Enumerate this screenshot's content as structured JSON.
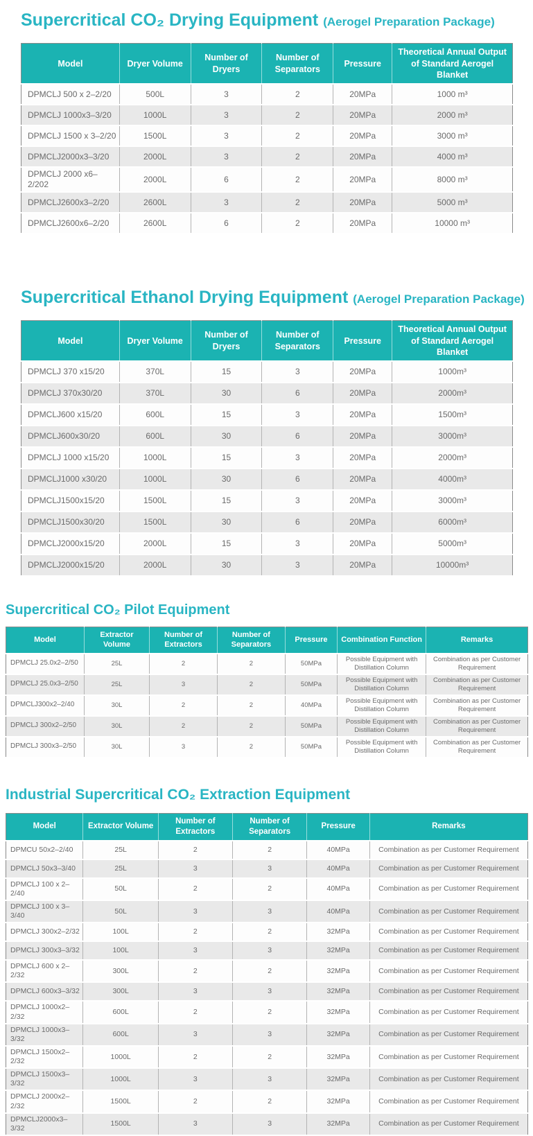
{
  "colors": {
    "accent": "#1bb3b2",
    "title": "#29b5c3",
    "row_alt": "#e9e9e9",
    "cell_text": "#6a6a6a"
  },
  "sections": [
    {
      "title": "Supercritical CO₂ Drying Equipment",
      "suffix": "(Aerogel Preparation Package)",
      "columns": [
        "Model",
        "Dryer Volume",
        "Number of Dryers",
        "Number of Separators",
        "Pressure",
        "Theoretical Annual Output of Standard Aerogel Blanket"
      ],
      "rows": [
        [
          "DPMCLJ 500 x 2–2/20",
          "500L",
          "3",
          "2",
          "20MPa",
          "1000 m³"
        ],
        [
          "DPMCLJ 1000x3–3/20",
          "1000L",
          "3",
          "2",
          "20MPa",
          "2000 m³"
        ],
        [
          "DPMCLJ 1500 x 3–2/20",
          "1500L",
          "3",
          "2",
          "20MPa",
          "3000 m³"
        ],
        [
          "DPMCLJ2000x3–3/20",
          "2000L",
          "3",
          "2",
          "20MPa",
          "4000 m³"
        ],
        [
          "DPMCLJ 2000 x6–2/202",
          "2000L",
          "6",
          "2",
          "20MPa",
          "8000 m³"
        ],
        [
          "DPMCLJ2600x3–2/20",
          "2600L",
          "3",
          "2",
          "20MPa",
          "5000 m³"
        ],
        [
          "DPMCLJ2600x6–2/20",
          "2600L",
          "6",
          "2",
          "20MPa",
          "10000 m³"
        ]
      ]
    },
    {
      "title": "Supercritical Ethanol Drying Equipment",
      "suffix": "(Aerogel Preparation Package)",
      "columns": [
        "Model",
        "Dryer Volume",
        "Number of Dryers",
        "Number of Separators",
        "Pressure",
        "Theoretical Annual Output of Standard Aerogel Blanket"
      ],
      "rows": [
        [
          "DPMCLJ 370 x15/20",
          "370L",
          "15",
          "3",
          "20MPa",
          "1000m³"
        ],
        [
          "DPMCLJ 370x30/20",
          "370L",
          "30",
          "6",
          "20MPa",
          "2000m³"
        ],
        [
          "DPMCLJ600 x15/20",
          "600L",
          "15",
          "3",
          "20MPa",
          "1500m³"
        ],
        [
          "DPMCLJ600x30/20",
          "600L",
          "30",
          "6",
          "20MPa",
          "3000m³"
        ],
        [
          "DPMCLJ 1000 x15/20",
          "1000L",
          "15",
          "3",
          "20MPa",
          "2000m³"
        ],
        [
          "DPMCLJ1000 x30/20",
          "1000L",
          "30",
          "6",
          "20MPa",
          "4000m³"
        ],
        [
          "DPMCLJ1500x15/20",
          "1500L",
          "15",
          "3",
          "20MPa",
          "3000m³"
        ],
        [
          "DPMCLJ1500x30/20",
          "1500L",
          "30",
          "6",
          "20MPa",
          "6000m³"
        ],
        [
          "DPMCLJ2000x15/20",
          "2000L",
          "15",
          "3",
          "20MPa",
          "5000m³"
        ],
        [
          "DPMCLJ2000x15/20",
          "2000L",
          "30",
          "3",
          "20MPa",
          "10000m³"
        ]
      ]
    },
    {
      "title": "Supercritical CO₂ Pilot Equipment",
      "suffix": "",
      "columns": [
        "Model",
        "Extractor Volume",
        "Number of Extractors",
        "Number of Separators",
        "Pressure",
        "Combination Function",
        "Remarks"
      ],
      "rows": [
        [
          "DPMCLJ 25.0x2–2/50",
          "25L",
          "2",
          "2",
          "50MPa",
          "Possible Equipment with Distillation Column",
          "Combination as per Customer Requirement"
        ],
        [
          "DPMCLJ 25.0x3–2/50",
          "25L",
          "3",
          "2",
          "50MPa",
          "Possible Equipment with Distillation Column",
          "Combination as per Customer Requirement"
        ],
        [
          "DPMCLJ300x2–2/40",
          "30L",
          "2",
          "2",
          "40MPa",
          "Possible Equipment with Distillation Column",
          "Combination as per Customer Requirement"
        ],
        [
          "DPMCLJ 300x2–2/50",
          "30L",
          "2",
          "2",
          "50MPa",
          "Possible Equipment with Distillation Column",
          "Combination as per Customer Requirement"
        ],
        [
          "DPMCLJ 300x3–2/50",
          "30L",
          "3",
          "2",
          "50MPa",
          "Possible Equipment with Distillation Column",
          "Combination as per Customer Requirement"
        ]
      ]
    },
    {
      "title": "Industrial Supercritical CO₂ Extraction Equipment",
      "suffix": "",
      "columns": [
        "Model",
        "Extractor Volume",
        "Number of Extractors",
        "Number of Separators",
        "Pressure",
        "Remarks"
      ],
      "rows": [
        [
          "DPMCU 50x2–2/40",
          "25L",
          "2",
          "2",
          "40MPa",
          "Combination as per Customer Requirement"
        ],
        [
          "DPMCLJ 50x3–3/40",
          "25L",
          "3",
          "3",
          "40MPa",
          "Combination as per Customer Requirement"
        ],
        [
          "DPMCLJ 100 x 2–2/40",
          "50L",
          "2",
          "2",
          "40MPa",
          "Combination as per Customer Requirement"
        ],
        [
          "DPMCLJ 100 x 3–3/40",
          "50L",
          "3",
          "3",
          "40MPa",
          "Combination as per Customer Requirement"
        ],
        [
          "DPMCLJ 300x2–2/32",
          "100L",
          "2",
          "2",
          "32MPa",
          "Combination as per Customer Requirement"
        ],
        [
          "DPMCLJ 300x3–3/32",
          "100L",
          "3",
          "3",
          "32MPa",
          "Combination as per Customer Requirement"
        ],
        [
          "DPMCLJ 600 x 2–2/32",
          "300L",
          "2",
          "2",
          "32MPa",
          "Combination as per Customer Requirement"
        ],
        [
          "DPMCLJ 600x3–3/32",
          "300L",
          "3",
          "3",
          "32MPa",
          "Combination as per Customer Requirement"
        ],
        [
          "DPMCLJ 1000x2–2/32",
          "600L",
          "2",
          "2",
          "32MPa",
          "Combination as per Customer Requirement"
        ],
        [
          "DPMCLJ 1000x3–3/32",
          "600L",
          "3",
          "3",
          "32MPa",
          "Combination as per Customer Requirement"
        ],
        [
          "DPMCLJ 1500x2–2/32",
          "1000L",
          "2",
          "2",
          "32MPa",
          "Combination as per Customer Requirement"
        ],
        [
          "DPMCLJ 1500x3–3/32",
          "1000L",
          "3",
          "3",
          "32MPa",
          "Combination as per Customer Requirement"
        ],
        [
          "DPMCLJ 2000x2–2/32",
          "1500L",
          "2",
          "2",
          "32MPa",
          "Combination as per Customer Requirement"
        ],
        [
          "DPMCLJ2000x3–3/32",
          "1500L",
          "3",
          "3",
          "32MPa",
          "Combination as per Customer Requirement"
        ]
      ]
    }
  ]
}
